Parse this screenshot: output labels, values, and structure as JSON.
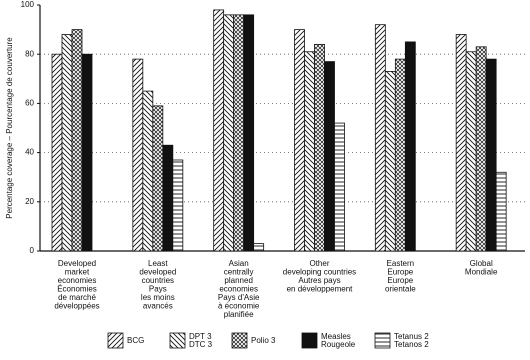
{
  "chart_data": {
    "type": "bar",
    "y_label": "Percentage coverage – Pourcentage de couverture",
    "categories": [
      [
        "Developed",
        "market",
        "economies",
        "Économies",
        "de marché",
        "développées"
      ],
      [
        "Least",
        "developed",
        "countries",
        "Pays",
        "les moins",
        "avancés"
      ],
      [
        "Asian",
        "centrally",
        "planned",
        "economies",
        "Pays d'Asie",
        "à économie",
        "planifiée"
      ],
      [
        "Other",
        "developing countries",
        "Autres pays",
        "en développement"
      ],
      [
        "Eastern",
        "Europe",
        "Europe",
        "orientale"
      ],
      [
        "Global",
        "Mondiale"
      ]
    ],
    "series": [
      {
        "name": [
          "BCG"
        ],
        "pattern": "diagonal",
        "values": [
          80,
          78,
          98,
          90,
          92,
          88
        ]
      },
      {
        "name": [
          "DPT 3",
          "DTC 3"
        ],
        "pattern": "backdiagonal",
        "values": [
          88,
          65,
          96,
          81,
          73,
          81
        ]
      },
      {
        "name": [
          "Polio 3"
        ],
        "pattern": "crosshatch",
        "values": [
          90,
          59,
          96,
          84,
          78,
          83
        ]
      },
      {
        "name": [
          "Measles",
          "Rougeole"
        ],
        "pattern": "solid",
        "values": [
          80,
          43,
          96,
          77,
          85,
          78
        ]
      },
      {
        "name": [
          "Tetanus 2",
          "Tetanos 2"
        ],
        "pattern": "horizontal",
        "values": [
          null,
          37,
          3,
          52,
          null,
          32
        ]
      }
    ],
    "ylim": [
      0,
      100
    ],
    "yticks": [
      0,
      20,
      40,
      60,
      80,
      100
    ],
    "grid": true
  }
}
